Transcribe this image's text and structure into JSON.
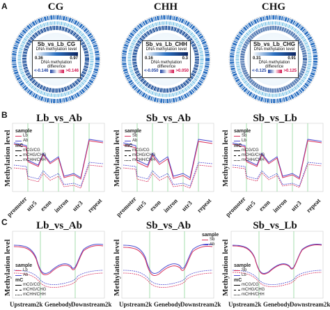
{
  "panels": {
    "a": "A",
    "b": "B",
    "c": "C"
  },
  "circos": [
    {
      "title": "CG",
      "name": "Sb_vs_Lb_CG",
      "level_label": "DNA methylation level",
      "min": "0.36",
      "max": "0.97",
      "diff_label": "DNA methylation difference",
      "neg": "<-0.146",
      "pos": ">0.146"
    },
    {
      "title": "CHH",
      "name": "Sb_vs_Lb_CHH",
      "level_label": "DNA methylation level",
      "min": "0.16",
      "max": "0.3",
      "diff_label": "DNA methylation difference",
      "neg": "<-0.050",
      "pos": ">0.050"
    },
    {
      "title": "CHG",
      "name": "Sb_vs_Lb_CHG",
      "level_label": "DNA methylation level",
      "min": "0.31",
      "max": "0.91",
      "diff_label": "DNA methylation difference",
      "neg": "<-0.125",
      "pos": ">0.125"
    }
  ],
  "row_b": [
    {
      "title": "Lb_vs_Ab",
      "s1": "Lb",
      "s2": "Ab"
    },
    {
      "title": "Sb_vs_Ab",
      "s1": "Sb",
      "s2": "Ab"
    },
    {
      "title": "Sb_vs_Lb",
      "s1": "Sb",
      "s2": "Lb"
    }
  ],
  "row_c": [
    {
      "title": "Lb_vs_Ab",
      "s1": "Lb",
      "s2": "Ab"
    },
    {
      "title": "Sb_vs_Ab",
      "s1": "Sb",
      "s2": "Ab"
    },
    {
      "title": "Sb_vs_Lb",
      "s1": "Sb",
      "s2": "Lb"
    }
  ],
  "ylabel": "Methylation level",
  "legend_sample": "sample",
  "legend_mc": "mC",
  "ctx": [
    "mCG/CG",
    "mCHG/CHG",
    "mCHH/CHH"
  ],
  "regions_b": [
    "promoter",
    "utr5",
    "exon",
    "intron",
    "utr3",
    "repeat"
  ],
  "regions_c": [
    "Upstream2k",
    "Genebody",
    "Downstream2k"
  ],
  "colors": {
    "sample1": "#d9305b",
    "sample2": "#4a4ad0",
    "ring": "#2a6fc0",
    "ring_light": "#86c8e8",
    "green_guide": "#7fd18a"
  }
}
